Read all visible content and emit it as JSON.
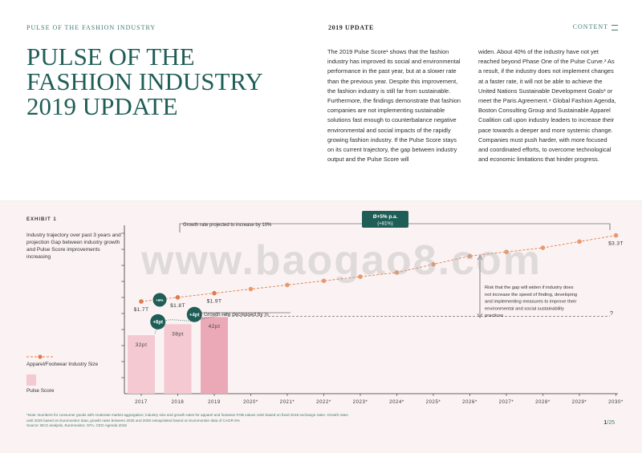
{
  "header": {
    "brand": "PULSE OF THE FASHION INDUSTRY",
    "section": "2019 UPDATE",
    "content_link": "CONTENT"
  },
  "title_lines": [
    "PULSE OF THE",
    "FASHION INDUSTRY",
    "2019 UPDATE"
  ],
  "body": {
    "col1": "The 2019 Pulse Score¹ shows that the fashion industry has improved its social and environmental performance in the past year, but at a slower rate than the previous year. Despite this improvement, the fashion industry is still far from sustainable. Furthermore, the findings demonstrate that fashion companies are not implementing sustainable solutions fast enough to counterbalance negative environmental and social impacts of the rapidly growing fashion industry. If the Pulse Score stays on its current trajectory, the gap between industry output and the Pulse Score will",
    "col2": "widen. About 40% of the industry have not yet reached beyond Phase One of the Pulse Curve.² As a result, if the industry does not implement changes at a faster rate, it will not be able to achieve the United Nations Sustainable Development Goals³ or meet the Paris Agreement.⁴ Global Fashion Agenda, Boston Consulting Group and Sustainable Apparel Coalition call upon industry leaders to increase their pace towards a deeper and more systemic change. Companies must push harder, with more focused and coordinated efforts, to overcome technological and economic limitations that hinder progress."
  },
  "exhibit": {
    "label": "EXHIBIT 1",
    "description": "Industry trajectory over past 3 years and projection Gap between industry growth and Pulse Score improvements increasing",
    "legend_line": "Apparel/Footwear Industry Size",
    "legend_bar": "Pulse Score"
  },
  "watermark": "www.baogao8.com",
  "colors": {
    "teal": "#1f5e56",
    "accent": "#e07a4f",
    "bar_light": "#f4c9d1",
    "bar_dark": "#eba9b7",
    "bg_pink": "#fbf3f3"
  },
  "chart_data": {
    "type": "bar",
    "categories": [
      "2017",
      "2018",
      "2019",
      "2020*",
      "2021*",
      "2022*",
      "2023*",
      "2024*",
      "2025*",
      "2026*",
      "2027*",
      "2028*",
      "2029*",
      "2030*"
    ],
    "series": [
      {
        "name": "Pulse Score",
        "type": "bar",
        "values": [
          32,
          38,
          42,
          null,
          null,
          null,
          null,
          null,
          null,
          null,
          null,
          null,
          null,
          null
        ]
      },
      {
        "name": "Apparel/Footwear Industry Size",
        "type": "line",
        "unit": "$T",
        "values": [
          1.7,
          1.8,
          1.9,
          2.0,
          2.1,
          2.2,
          2.3,
          2.4,
          2.6,
          2.8,
          2.9,
          3.0,
          3.15,
          3.3
        ]
      }
    ],
    "bar_labels": [
      "32pt",
      "38pt",
      "42pt"
    ],
    "line_labels": [
      {
        "index": 0,
        "text": "$1.7T"
      },
      {
        "index": 1,
        "text": "$1.8T"
      },
      {
        "index": 2,
        "text": "$1.9T"
      },
      {
        "index": 13,
        "text": "$3.3T"
      }
    ],
    "growth_badges": [
      {
        "text": "+6pt",
        "from": 0,
        "to": 1
      },
      {
        "text": "+4pt",
        "from": 1,
        "to": 2
      }
    ],
    "industry_badge": "+6%",
    "cagr_badge": [
      "Ø+5% p.a.",
      "(+81%)"
    ],
    "annotations": {
      "growth_projected": "Growth rate projected to increase by 10%",
      "growth_decreased": "Growth rate decreased by ⅓",
      "risk": "Risk that the gap will widen if industry does not increase the speed of finding, developing and implementing measures to improve their environmental and social sustainability practices",
      "unknown": "?"
    }
  },
  "footnote": {
    "note": "*Note: Numbers for consumer goods with moderate market aggregation; industry size and growth rates for apparel and footwear FOB values USD based on fixed 2018 exchange rates. Growth rates until 2025 based on Euromonitor data; growth rates between 2025 and 2030 extrapolated based on Euromonitor data of CAGR 5%",
    "source": "Source: BCG analysis, Euromonitor, GFA, CEO Agenda 2018"
  },
  "page": {
    "current": "1",
    "total": "/25"
  }
}
